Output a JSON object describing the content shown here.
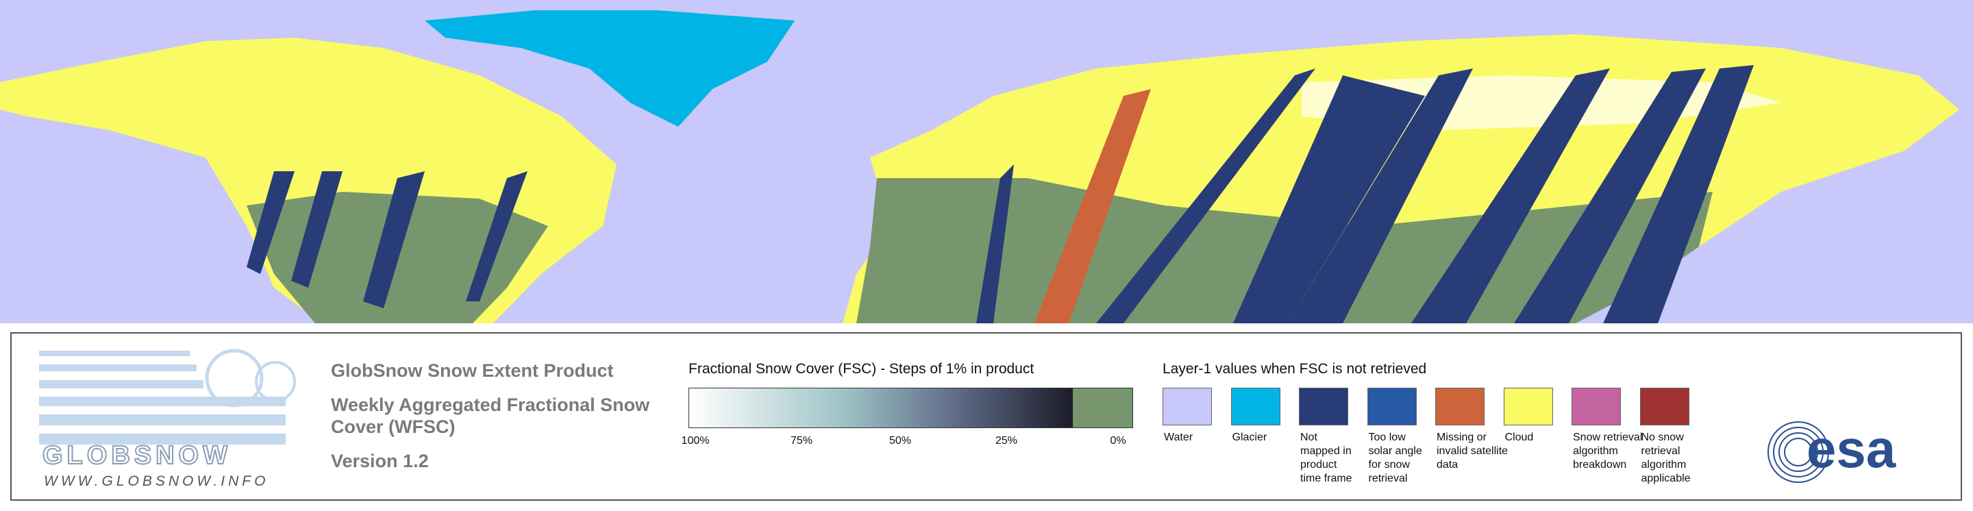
{
  "logo": {
    "name": "GLOBSNOW",
    "url": "WWW.GLOBSNOW.INFO"
  },
  "product": {
    "title": "GlobSnow Snow Extent Product",
    "subtitle_lines": [
      "Weekly Aggregated Fractional Snow",
      "Cover (WFSC)"
    ],
    "version": "Version 1.2"
  },
  "fsc_legend": {
    "title": "Fractional Snow Cover (FSC) - Steps of 1% in product",
    "ticks": [
      "100%",
      "75%",
      "50%",
      "25%",
      "0%"
    ]
  },
  "layer_legend": {
    "title": "Layer-1 values when FSC is not retrieved",
    "items": [
      {
        "label_lines": [
          "Water"
        ],
        "color": "#c8c8fa"
      },
      {
        "label_lines": [
          "Glacier"
        ],
        "color": "#00b4e6"
      },
      {
        "label_lines": [
          "Not",
          "mapped in",
          "product",
          "time frame"
        ],
        "color": "#283c78"
      },
      {
        "label_lines": [
          "Too low",
          "solar angle",
          "for snow",
          "retrieval"
        ],
        "color": "#285aa5"
      },
      {
        "label_lines": [
          "Missing or",
          "invalid satellite",
          "data"
        ],
        "color": "#cd643c"
      },
      {
        "label_lines": [
          "Cloud"
        ],
        "color": "#fafa64"
      },
      {
        "label_lines": [
          "Snow retrieval",
          "algorithm",
          "breakdown"
        ],
        "color": "#c364a0"
      },
      {
        "label_lines": [
          "No snow",
          "retrieval",
          "algorithm",
          "applicable"
        ],
        "color": "#a03232"
      }
    ]
  },
  "agency": "esa"
}
